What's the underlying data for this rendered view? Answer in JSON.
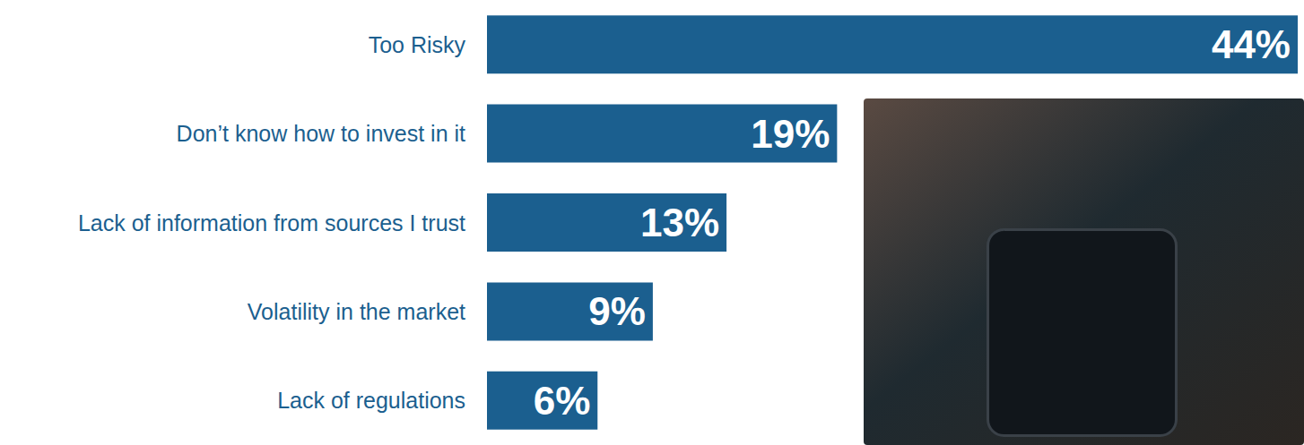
{
  "chart_data": {
    "type": "bar",
    "orientation": "horizontal",
    "categories": [
      "Too Risky",
      "Don’t know how to invest in it",
      "Lack of information from sources I trust",
      "Volatility in the market",
      "Lack of regulations"
    ],
    "values": [
      44,
      19,
      13,
      9,
      6
    ],
    "value_labels": [
      "44%",
      "19%",
      "13%",
      "9%",
      "6%"
    ],
    "color": "#1b5f8f",
    "xlim": [
      0,
      44
    ],
    "grid": false,
    "tick_labels": "y",
    "data_labels": true
  }
}
